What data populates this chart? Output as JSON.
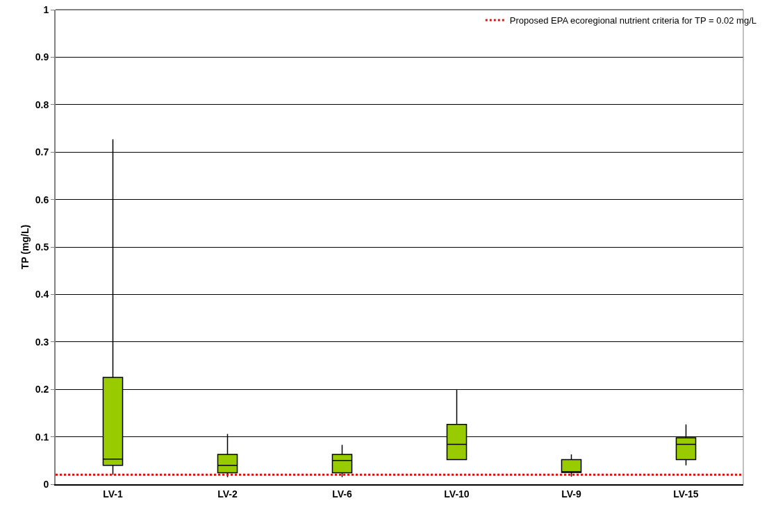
{
  "chart_data": {
    "type": "box",
    "ylabel": "TP (mg/L)",
    "categories": [
      "LV-1",
      "LV-2",
      "LV-6",
      "LV-10",
      "LV-9",
      "LV-15"
    ],
    "boxes": [
      {
        "low": 0.02,
        "q1": 0.04,
        "median": 0.053,
        "q3": 0.225,
        "high": 0.727
      },
      {
        "low": 0.015,
        "q1": 0.024,
        "median": 0.04,
        "q3": 0.063,
        "high": 0.106
      },
      {
        "low": 0.015,
        "q1": 0.024,
        "median": 0.05,
        "q3": 0.063,
        "high": 0.083
      },
      {
        "low": 0.052,
        "q1": 0.052,
        "median": 0.084,
        "q3": 0.126,
        "high": 0.2
      },
      {
        "low": 0.016,
        "q1": 0.025,
        "median": 0.025,
        "q3": 0.052,
        "high": 0.063
      },
      {
        "low": 0.04,
        "q1": 0.052,
        "median": 0.084,
        "q3": 0.098,
        "high": 0.126
      }
    ],
    "color": "#99cc00",
    "ylim": [
      0,
      1
    ],
    "yticks": [
      0,
      0.1,
      0.2,
      0.3,
      0.4,
      0.5,
      0.6,
      0.7,
      0.8,
      0.9,
      1
    ],
    "grid": "y",
    "legend": "top right",
    "ref_lines": [
      {
        "axis": "y",
        "value": 0.02,
        "label": "Proposed EPA ecoregional nutrient criteria for TP = 0.02 mg/L",
        "color": "#ff0000",
        "line_style": "dotted"
      }
    ]
  }
}
